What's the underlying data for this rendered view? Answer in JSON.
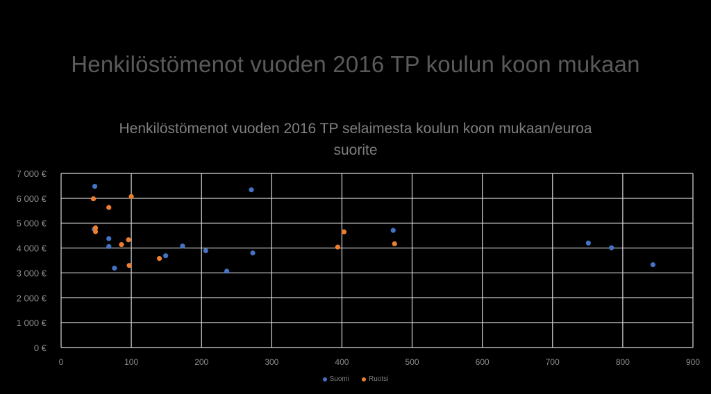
{
  "slide": {
    "title": "Henkilöstömenot vuoden 2016 TP koulun koon mukaan"
  },
  "chart_data": {
    "type": "scatter",
    "title_lines": [
      "Henkilöstömenot vuoden 2016 TP selaimesta koulun koon mukaan/euroa",
      "suorite"
    ],
    "xlabel": "",
    "ylabel": "",
    "xlim": [
      0,
      900
    ],
    "ylim": [
      0,
      7000
    ],
    "x_ticks": [
      0,
      100,
      200,
      300,
      400,
      500,
      600,
      700,
      800,
      900
    ],
    "x_tick_labels": [
      "0",
      "100",
      "200",
      "300",
      "400",
      "500",
      "600",
      "700",
      "800",
      "900"
    ],
    "y_ticks": [
      0,
      1000,
      2000,
      3000,
      4000,
      5000,
      6000,
      7000
    ],
    "y_tick_labels": [
      "0 €",
      "1 000 €",
      "2 000 €",
      "3 000 €",
      "4 000 €",
      "5 000 €",
      "6 000 €",
      "7 000 €"
    ],
    "grid": true,
    "legend_position": "bottom",
    "series": [
      {
        "name": "Suomi",
        "color": "#4472C4",
        "points": [
          [
            48,
            6480
          ],
          [
            47,
            4760
          ],
          [
            68,
            4380
          ],
          [
            68,
            4060
          ],
          [
            76,
            3190
          ],
          [
            149,
            3690
          ],
          [
            173,
            4080
          ],
          [
            206,
            3890
          ],
          [
            236,
            3070
          ],
          [
            271,
            6340
          ],
          [
            273,
            3800
          ],
          [
            473,
            4710
          ],
          [
            751,
            4200
          ],
          [
            784,
            4010
          ],
          [
            843,
            3330
          ]
        ]
      },
      {
        "name": "Ruotsi",
        "color": "#ED7D31",
        "points": [
          [
            46,
            5980
          ],
          [
            49,
            4810
          ],
          [
            49,
            4660
          ],
          [
            68,
            5630
          ],
          [
            86,
            4140
          ],
          [
            96,
            4330
          ],
          [
            97,
            3300
          ],
          [
            100,
            6070
          ],
          [
            140,
            3580
          ],
          [
            394,
            4040
          ],
          [
            403,
            4650
          ],
          [
            475,
            4170
          ]
        ]
      }
    ]
  }
}
